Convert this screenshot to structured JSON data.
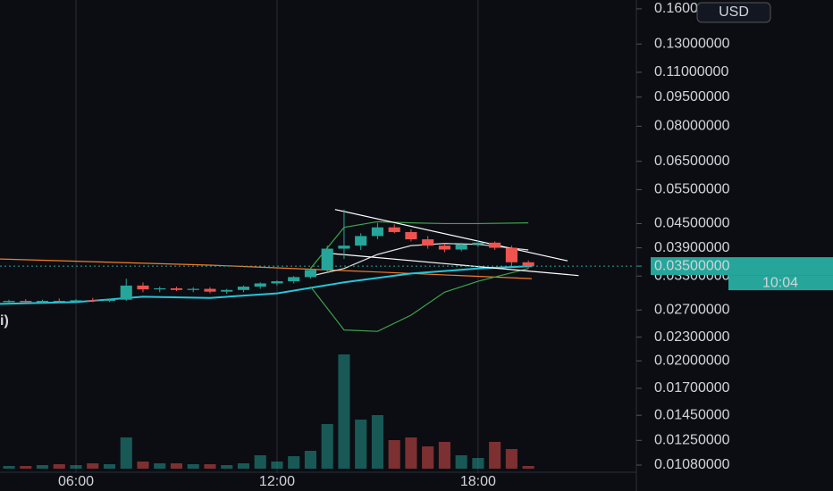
{
  "chart_data": {
    "type": "candlestick",
    "currency": "USD",
    "legend_fragment": "i)",
    "log_scale": true,
    "up_color": "#26a69a",
    "down_color": "#ef5350",
    "xlim": [
      3.733,
      22.67
    ],
    "ylim": [
      0.0103,
      0.1686
    ],
    "vlim": [
      0,
      140
    ],
    "xticks": [
      {
        "value": 6,
        "label": "06:00"
      },
      {
        "value": 12,
        "label": "12:00"
      },
      {
        "value": 18,
        "label": "18:00"
      }
    ],
    "yticks": [
      {
        "value": 0.16,
        "label": "0.16000000"
      },
      {
        "value": 0.13,
        "label": "0.13000000"
      },
      {
        "value": 0.11,
        "label": "0.11000000"
      },
      {
        "value": 0.095,
        "label": "0.09500000"
      },
      {
        "value": 0.08,
        "label": "0.08000000"
      },
      {
        "value": 0.065,
        "label": "0.06500000"
      },
      {
        "value": 0.055,
        "label": "0.05500000"
      },
      {
        "value": 0.045,
        "label": "0.04500000"
      },
      {
        "value": 0.039,
        "label": "0.03900000"
      },
      {
        "value": 0.033,
        "label": "0.03300000"
      },
      {
        "value": 0.027,
        "label": "0.02700000"
      },
      {
        "value": 0.023,
        "label": "0.02300000"
      },
      {
        "value": 0.02,
        "label": "0.02000000"
      },
      {
        "value": 0.017,
        "label": "0.01700000"
      },
      {
        "value": 0.0145,
        "label": "0.01450000"
      },
      {
        "value": 0.0125,
        "label": "0.01250000"
      },
      {
        "value": 0.0108,
        "label": "0.01080000"
      }
    ],
    "last_price": {
      "value": 0.035,
      "label": "0.03500000"
    },
    "countdown": "10:04",
    "candles": {
      "x": [
        4.0,
        4.5,
        5.0,
        5.5,
        6.0,
        6.5,
        7.0,
        7.5,
        8.0,
        8.5,
        9.0,
        9.5,
        10.0,
        10.5,
        11.0,
        11.5,
        12.0,
        12.5,
        13.0,
        13.5,
        14.0,
        14.5,
        15.0,
        15.5,
        16.0,
        16.5,
        17.0,
        17.5,
        18.0,
        18.5,
        19.0,
        19.5
      ],
      "open": [
        0.0283,
        0.0285,
        0.0283,
        0.0285,
        0.0284,
        0.0286,
        0.0285,
        0.0287,
        0.0312,
        0.0305,
        0.0307,
        0.0304,
        0.0306,
        0.0301,
        0.0304,
        0.031,
        0.0316,
        0.032,
        0.0328,
        0.0342,
        0.0388,
        0.0395,
        0.0418,
        0.044,
        0.0428,
        0.041,
        0.0395,
        0.0386,
        0.0398,
        0.0402,
        0.039,
        0.0358
      ],
      "high": [
        0.0287,
        0.0288,
        0.0287,
        0.0289,
        0.0288,
        0.029,
        0.0289,
        0.0325,
        0.0318,
        0.031,
        0.031,
        0.0309,
        0.0309,
        0.0306,
        0.0312,
        0.0318,
        0.0322,
        0.033,
        0.0345,
        0.0395,
        0.0489,
        0.0425,
        0.0452,
        0.0448,
        0.0435,
        0.0418,
        0.04,
        0.0402,
        0.0408,
        0.0405,
        0.0395,
        0.0362
      ],
      "low": [
        0.028,
        0.0281,
        0.0281,
        0.0282,
        0.0281,
        0.0283,
        0.0283,
        0.0285,
        0.03,
        0.03,
        0.0302,
        0.03,
        0.0298,
        0.0297,
        0.03,
        0.0306,
        0.0312,
        0.0316,
        0.0325,
        0.0338,
        0.0365,
        0.0385,
        0.041,
        0.0425,
        0.0405,
        0.0388,
        0.038,
        0.0382,
        0.0392,
        0.0385,
        0.035,
        0.0345
      ],
      "close": [
        0.0285,
        0.0283,
        0.0285,
        0.0284,
        0.0286,
        0.0285,
        0.0287,
        0.0312,
        0.0305,
        0.0307,
        0.0304,
        0.0306,
        0.0301,
        0.0304,
        0.031,
        0.0316,
        0.032,
        0.0328,
        0.0342,
        0.0388,
        0.0395,
        0.0418,
        0.044,
        0.0428,
        0.041,
        0.0395,
        0.0386,
        0.0398,
        0.0402,
        0.039,
        0.0358,
        0.035
      ],
      "volume": [
        3,
        3,
        4,
        5,
        4,
        6,
        5,
        35,
        8,
        6,
        6,
        5,
        5,
        4,
        6,
        15,
        8,
        14,
        20,
        50,
        128,
        55,
        60,
        32,
        35,
        25,
        30,
        15,
        12,
        30,
        22,
        3
      ]
    },
    "overlays": [
      {
        "color": "#f57c2a",
        "x": [
          3.733,
          10,
          15,
          19.6
        ],
        "values": [
          0.0365,
          0.0352,
          0.0338,
          0.0325
        ]
      },
      {
        "color": "#26c6da",
        "x": [
          3.733,
          6,
          8,
          10,
          12,
          14,
          16,
          18,
          19.6
        ],
        "values": [
          0.028,
          0.0283,
          0.0292,
          0.029,
          0.0298,
          0.0318,
          0.0335,
          0.0345,
          0.035
        ]
      },
      {
        "color": "#e0e0e0",
        "x": [
          13,
          14,
          15,
          16,
          17,
          18,
          19.5
        ],
        "values": [
          0.033,
          0.0345,
          0.0375,
          0.0395,
          0.04,
          0.0398,
          0.0385
        ]
      },
      {
        "color": "#3fa34d",
        "x": [
          13,
          14,
          15,
          16,
          17,
          18,
          19.5
        ],
        "values": [
          0.0345,
          0.044,
          0.0455,
          0.0452,
          0.045,
          0.045,
          0.0452
        ]
      },
      {
        "color": "#3fa34d",
        "x": [
          13,
          14,
          15,
          16,
          17,
          18,
          19.5
        ],
        "values": [
          0.031,
          0.024,
          0.0238,
          0.0262,
          0.03,
          0.032,
          0.0345
        ]
      },
      {
        "color": "#ffffff",
        "x": [
          13.73,
          20.67
        ],
        "values": [
          0.0489,
          0.0361
        ]
      },
      {
        "color": "#ffffff",
        "x": [
          13.33,
          21.0
        ],
        "values": [
          0.0379,
          0.0331
        ]
      }
    ]
  }
}
